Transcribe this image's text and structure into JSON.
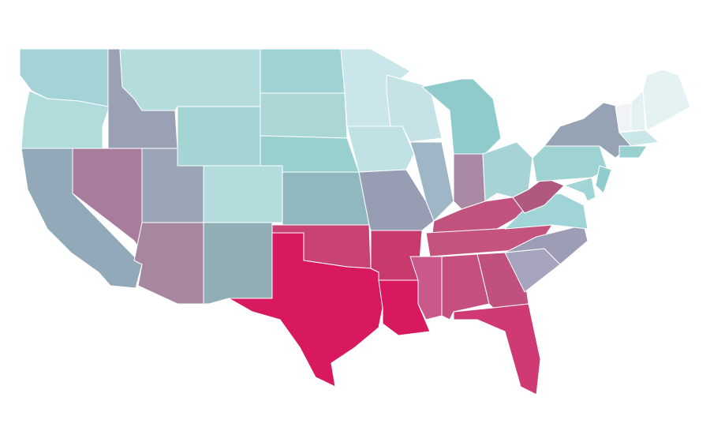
{
  "map": {
    "regions": [
      {
        "color": "#a3d3d6"
      },
      {
        "color": "#b1dcdc"
      },
      {
        "color": "#91a9b8"
      },
      {
        "color": "#a87c9b"
      },
      {
        "color": "#9ba1b5"
      },
      {
        "color": "#b4dcdc"
      },
      {
        "color": "#a4d4d4"
      },
      {
        "color": "#9aa6b8"
      },
      {
        "color": "#a786a0"
      },
      {
        "color": "#b3dcdc"
      },
      {
        "color": "#91aeb7"
      },
      {
        "color": "#9fd2d3"
      },
      {
        "color": "#aad6d6"
      },
      {
        "color": "#98cfcf"
      },
      {
        "color": "#90b8bf"
      },
      {
        "color": "#c84276"
      },
      {
        "color": "#d8195f"
      },
      {
        "color": "#cbe6ea"
      },
      {
        "color": "#c1e2e5"
      },
      {
        "color": "#979db3"
      },
      {
        "color": "#c83a6e"
      },
      {
        "color": "#d81960"
      },
      {
        "color": "#c5e3e6"
      },
      {
        "color": "#9fb6c6"
      },
      {
        "color": "#90cbcc"
      },
      {
        "color": "#aa89a4"
      },
      {
        "color": "#a6d4d6"
      },
      {
        "color": "#c1517f"
      },
      {
        "color": "#c4537e"
      },
      {
        "color": "#ca588a"
      },
      {
        "color": "#c54f80"
      },
      {
        "color": "#c0517e"
      },
      {
        "color": "#cf3a74"
      },
      {
        "color": "#a7a5bd"
      },
      {
        "color": "#9d9eb5"
      },
      {
        "color": "#a0d4d6"
      },
      {
        "color": "#b0587f"
      },
      {
        "color": "#9fd2d3"
      },
      {
        "color": "#96a3b5"
      },
      {
        "color": "#90cbcd"
      },
      {
        "color": "#a2d5d6"
      },
      {
        "color": "#f1f3f4"
      },
      {
        "color": "#e3f1f3"
      },
      {
        "color": "#e5f2f3"
      },
      {
        "color": "#c9e6e8"
      },
      {
        "color": "#98d0d0"
      }
    ]
  }
}
